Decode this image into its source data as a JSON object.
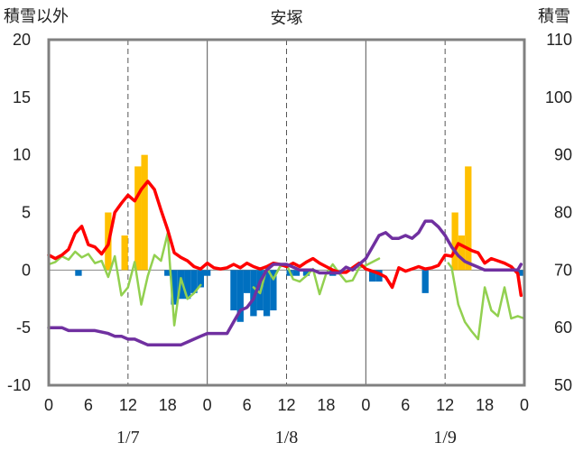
{
  "chart_data": {
    "type": "bar+line",
    "title": "安塚",
    "ylabel_left": "積雪以外",
    "ylabel_right": "積雪",
    "ylim_left": [
      -10,
      20
    ],
    "yticks_left": [
      -10,
      -5,
      0,
      5,
      10,
      15,
      20
    ],
    "ylim_right": [
      50,
      110
    ],
    "yticks_right": [
      50,
      60,
      70,
      80,
      90,
      100,
      110
    ],
    "xlim": [
      0,
      72
    ],
    "xtick_labels": [
      "0",
      "6",
      "12",
      "18",
      "0",
      "6",
      "12",
      "18",
      "0",
      "6",
      "12",
      "18",
      "0"
    ],
    "day_labels": [
      "1/7",
      "1/8",
      "1/9"
    ],
    "grid": "dashed vertical at 12h, solid vertical at day boundaries",
    "colors": {
      "snowfall_pos": "#FFC000",
      "snowfall_neg": "#0070C0",
      "red_line": "#FF0000",
      "green_line": "#92D050",
      "purple_line": "#7030A0",
      "frame": "#808080"
    },
    "bars": {
      "axis": "left",
      "series": [
        {
          "x": 4.5,
          "y": -0.5
        },
        {
          "x": 9,
          "y": 5
        },
        {
          "x": 11.5,
          "y": 3
        },
        {
          "x": 13.5,
          "y": 9
        },
        {
          "x": 14.5,
          "y": 10
        },
        {
          "x": 18,
          "y": -0.5
        },
        {
          "x": 19,
          "y": -3
        },
        {
          "x": 20,
          "y": -2.5
        },
        {
          "x": 21,
          "y": -2.5
        },
        {
          "x": 22,
          "y": -2
        },
        {
          "x": 23,
          "y": -1.5
        },
        {
          "x": 24,
          "y": -0.5
        },
        {
          "x": 28,
          "y": -3.5
        },
        {
          "x": 29,
          "y": -4.5
        },
        {
          "x": 30,
          "y": -2
        },
        {
          "x": 31,
          "y": -4
        },
        {
          "x": 32,
          "y": -3.5
        },
        {
          "x": 33,
          "y": -4
        },
        {
          "x": 34,
          "y": -3.5
        },
        {
          "x": 36.5,
          "y": -0.5
        },
        {
          "x": 37.5,
          "y": -0.5
        },
        {
          "x": 39,
          "y": -0.5
        },
        {
          "x": 43,
          "y": -0.5
        },
        {
          "x": 49,
          "y": -1
        },
        {
          "x": 50,
          "y": -1
        },
        {
          "x": 57,
          "y": -2
        },
        {
          "x": 61.5,
          "y": 5
        },
        {
          "x": 62.5,
          "y": 3
        },
        {
          "x": 63.5,
          "y": 9
        },
        {
          "x": 71.5,
          "y": -0.5
        }
      ]
    },
    "red_series": {
      "axis": "left",
      "points": [
        [
          0,
          1.3
        ],
        [
          1,
          1
        ],
        [
          2,
          1.3
        ],
        [
          3,
          1.8
        ],
        [
          4,
          3.2
        ],
        [
          5,
          3.8
        ],
        [
          6,
          2.2
        ],
        [
          7,
          2
        ],
        [
          8,
          1.4
        ],
        [
          9,
          2.2
        ],
        [
          10,
          5
        ],
        [
          11,
          5.8
        ],
        [
          12,
          6.5
        ],
        [
          13,
          6
        ],
        [
          14,
          7
        ],
        [
          15,
          7.7
        ],
        [
          16,
          7
        ],
        [
          17,
          5.2
        ],
        [
          18,
          3.5
        ],
        [
          19,
          1.5
        ],
        [
          20,
          1.1
        ],
        [
          21,
          0.8
        ],
        [
          22,
          0.3
        ],
        [
          23,
          0.1
        ],
        [
          24,
          0.6
        ],
        [
          25,
          0.2
        ],
        [
          26,
          0.1
        ],
        [
          27,
          0.2
        ],
        [
          28,
          0.5
        ],
        [
          29,
          0.2
        ],
        [
          30,
          0.6
        ],
        [
          31,
          0.3
        ],
        [
          32,
          0.1
        ],
        [
          33,
          0.3
        ],
        [
          34,
          0.6
        ],
        [
          35,
          0.5
        ],
        [
          36,
          0.3
        ],
        [
          37,
          0.6
        ],
        [
          38,
          0.3
        ],
        [
          39,
          0.7
        ],
        [
          40,
          1
        ],
        [
          41,
          0.6
        ],
        [
          42,
          0.3
        ],
        [
          43,
          0
        ],
        [
          44,
          -0.2
        ],
        [
          45,
          -0.2
        ],
        [
          46,
          0.2
        ],
        [
          47,
          0.6
        ],
        [
          48,
          0.1
        ],
        [
          49,
          -0.1
        ],
        [
          50,
          -0.3
        ],
        [
          51,
          -0.6
        ],
        [
          52,
          -1.5
        ],
        [
          53,
          0.2
        ],
        [
          54,
          -0.1
        ],
        [
          55,
          0.1
        ],
        [
          56,
          0.3
        ],
        [
          57,
          0.1
        ],
        [
          58,
          0.2
        ],
        [
          59,
          0.4
        ],
        [
          60,
          1.3
        ],
        [
          61,
          1.2
        ],
        [
          62,
          2.3
        ],
        [
          63,
          2
        ],
        [
          64,
          1.7
        ],
        [
          65,
          1.5
        ],
        [
          66,
          0.6
        ],
        [
          67,
          1
        ],
        [
          68,
          0.8
        ],
        [
          69,
          0.6
        ],
        [
          70,
          0.3
        ],
        [
          71,
          -0.3
        ],
        [
          71.5,
          -2.2
        ]
      ]
    },
    "green_series": {
      "axis": "left",
      "points": [
        [
          0,
          0.5
        ],
        [
          1,
          0.7
        ],
        [
          2,
          1.2
        ],
        [
          3,
          0.9
        ],
        [
          4,
          1.6
        ],
        [
          5,
          1.1
        ],
        [
          6,
          1.4
        ],
        [
          7,
          0.6
        ],
        [
          8,
          0.8
        ],
        [
          9,
          -0.6
        ],
        [
          10,
          1.2
        ],
        [
          11,
          -2.2
        ],
        [
          12,
          -1.5
        ],
        [
          13,
          0.7
        ],
        [
          14,
          -3
        ],
        [
          15,
          -0.5
        ],
        [
          16,
          1.3
        ],
        [
          17,
          0.8
        ],
        [
          18,
          3.2
        ],
        [
          19,
          -4.8
        ],
        [
          20,
          -0.7
        ],
        [
          21,
          -2.5
        ],
        [
          22,
          -2
        ],
        [
          23,
          -1.3
        ],
        [
          24,
          null
        ],
        [
          30,
          null
        ],
        [
          31,
          -1.5
        ],
        [
          32,
          -2
        ],
        [
          33,
          0.2
        ],
        [
          34,
          -0.8
        ],
        [
          35,
          0.3
        ],
        [
          36,
          0.5
        ],
        [
          37,
          -0.8
        ],
        [
          38,
          -1
        ],
        [
          39,
          -0.5
        ],
        [
          40,
          0.1
        ],
        [
          41,
          -2.1
        ],
        [
          42,
          -0.3
        ],
        [
          43,
          0.5
        ],
        [
          44,
          -0.3
        ],
        [
          45,
          -1
        ],
        [
          46,
          -0.9
        ],
        [
          47,
          0.2
        ],
        [
          48,
          0.4
        ],
        [
          49,
          0.7
        ],
        [
          50,
          1
        ],
        [
          51,
          null
        ],
        [
          60,
          null
        ],
        [
          60.5,
          0.6
        ],
        [
          61,
          0.2
        ],
        [
          62,
          -3
        ],
        [
          63,
          -4.5
        ],
        [
          64,
          -5.3
        ],
        [
          65,
          -6
        ],
        [
          66,
          -1.5
        ],
        [
          67,
          -3.5
        ],
        [
          68,
          -4
        ],
        [
          69,
          -1.5
        ],
        [
          70,
          -4.2
        ],
        [
          71,
          -4
        ],
        [
          72,
          -4.2
        ]
      ]
    },
    "purple_series": {
      "axis": "right",
      "points": [
        [
          0,
          60
        ],
        [
          2,
          60
        ],
        [
          3,
          59.5
        ],
        [
          4,
          59.5
        ],
        [
          5,
          59.5
        ],
        [
          7,
          59.5
        ],
        [
          9,
          59
        ],
        [
          10,
          58.5
        ],
        [
          11,
          58.5
        ],
        [
          12,
          58
        ],
        [
          13,
          58
        ],
        [
          14,
          57.5
        ],
        [
          15,
          57
        ],
        [
          20,
          57
        ],
        [
          21,
          57.5
        ],
        [
          22,
          58
        ],
        [
          23,
          58.5
        ],
        [
          24,
          59
        ],
        [
          25,
          59
        ],
        [
          26,
          59
        ],
        [
          27,
          59
        ],
        [
          28,
          61
        ],
        [
          29,
          63
        ],
        [
          30,
          63.5
        ],
        [
          31,
          65
        ],
        [
          32,
          68
        ],
        [
          33,
          70
        ],
        [
          34,
          71
        ],
        [
          35,
          71
        ],
        [
          36,
          71
        ],
        [
          37,
          70.5
        ],
        [
          38,
          70
        ],
        [
          39,
          70
        ],
        [
          40,
          70
        ],
        [
          41,
          69.5
        ],
        [
          42,
          69.5
        ],
        [
          43,
          69.5
        ],
        [
          44,
          69.5
        ],
        [
          45,
          70.5
        ],
        [
          46,
          70
        ],
        [
          47,
          71
        ],
        [
          48,
          72
        ],
        [
          49,
          74
        ],
        [
          50,
          76
        ],
        [
          51,
          76.5
        ],
        [
          52,
          75.5
        ],
        [
          53,
          75.5
        ],
        [
          54,
          76
        ],
        [
          55,
          75.5
        ],
        [
          56,
          76.5
        ],
        [
          57,
          78.5
        ],
        [
          58,
          78.5
        ],
        [
          59,
          77.5
        ],
        [
          60,
          76
        ],
        [
          61,
          74
        ],
        [
          62,
          72.5
        ],
        [
          63,
          71.5
        ],
        [
          64,
          71
        ],
        [
          65,
          70.5
        ],
        [
          66,
          70
        ],
        [
          70,
          70
        ],
        [
          71,
          70
        ],
        [
          71.5,
          71
        ]
      ]
    }
  }
}
